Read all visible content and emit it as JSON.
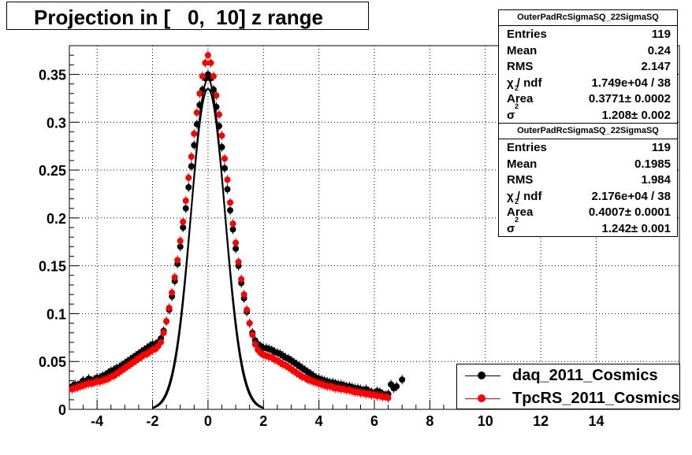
{
  "title": "Projection in [   0,  10] z range",
  "stats_boxes": [
    {
      "header": "OuterPadRcSigmaSQ_22SigmaSQ",
      "rows": [
        {
          "key": "Entries",
          "value": "119"
        },
        {
          "key": "Mean",
          "value": "0.24"
        },
        {
          "key": "RMS",
          "value": "2.147"
        },
        {
          "key": "χ  / ndf",
          "sub": "2",
          "value": "1.749e+04 / 38"
        },
        {
          "key": "Area",
          "value": "0.3771± 0.0002"
        },
        {
          "key": "σ",
          "sub": "2",
          "value": "1.208± 0.002"
        }
      ]
    },
    {
      "header": "OuterPadRcSigmaSQ_22SigmaSQ",
      "rows": [
        {
          "key": "Entries",
          "value": "119"
        },
        {
          "key": "Mean",
          "value": "0.1985"
        },
        {
          "key": "RMS",
          "value": "1.984"
        },
        {
          "key": "χ  / ndf",
          "sub": "2",
          "value": "2.176e+04 / 38"
        },
        {
          "key": "Area",
          "value": "0.4007± 0.0001"
        },
        {
          "key": "σ",
          "sub": "2",
          "value": "1.242± 0.001"
        }
      ]
    }
  ],
  "legend": [
    {
      "label": "daq_2011_Cosmics",
      "color": "#000000"
    },
    {
      "label": "TpcRS_2011_Cosmics",
      "color": "#ff0000"
    }
  ],
  "chart_data": {
    "type": "scatter",
    "xlim": [
      -5,
      17
    ],
    "ylim": [
      0,
      0.38
    ],
    "grid": true,
    "legend_position": "bottom-right",
    "x_ticks": [
      -4,
      -2,
      0,
      2,
      4,
      6,
      8,
      10,
      12,
      14
    ],
    "x_tick_labels": [
      "-4",
      "-2",
      "0",
      "2",
      "4",
      "6",
      "8",
      "10",
      "12",
      "14"
    ],
    "y_ticks": [
      0,
      0.05,
      0.1,
      0.15,
      0.2,
      0.25,
      0.3,
      0.35
    ],
    "y_tick_labels": [
      "0",
      "0.05",
      "0.1",
      "0.15",
      "0.2",
      "0.25",
      "0.3",
      "0.35"
    ],
    "series": [
      {
        "name": "daq_2011_Cosmics",
        "color": "#000000",
        "points": [
          [
            -4.9,
            0.024
          ],
          [
            -4.8,
            0.026
          ],
          [
            -4.7,
            0.025
          ],
          [
            -4.6,
            0.027
          ],
          [
            -4.5,
            0.03
          ],
          [
            -4.4,
            0.029
          ],
          [
            -4.3,
            0.032
          ],
          [
            -4.2,
            0.03
          ],
          [
            -4.1,
            0.031
          ],
          [
            -4.0,
            0.033
          ],
          [
            -3.9,
            0.033
          ],
          [
            -3.8,
            0.035
          ],
          [
            -3.7,
            0.036
          ],
          [
            -3.6,
            0.038
          ],
          [
            -3.5,
            0.04
          ],
          [
            -3.4,
            0.041
          ],
          [
            -3.3,
            0.043
          ],
          [
            -3.2,
            0.044
          ],
          [
            -3.1,
            0.046
          ],
          [
            -3.0,
            0.048
          ],
          [
            -2.9,
            0.05
          ],
          [
            -2.8,
            0.052
          ],
          [
            -2.7,
            0.054
          ],
          [
            -2.6,
            0.056
          ],
          [
            -2.5,
            0.058
          ],
          [
            -2.4,
            0.06
          ],
          [
            -2.3,
            0.062
          ],
          [
            -2.2,
            0.064
          ],
          [
            -2.1,
            0.066
          ],
          [
            -2.0,
            0.068
          ],
          [
            -1.9,
            0.068
          ],
          [
            -1.8,
            0.07
          ],
          [
            -1.7,
            0.074
          ],
          [
            -1.6,
            0.082
          ],
          [
            -1.5,
            0.092
          ],
          [
            -1.4,
            0.104
          ],
          [
            -1.3,
            0.118
          ],
          [
            -1.2,
            0.134
          ],
          [
            -1.1,
            0.152
          ],
          [
            -1.0,
            0.17
          ],
          [
            -0.9,
            0.19
          ],
          [
            -0.8,
            0.21
          ],
          [
            -0.7,
            0.232
          ],
          [
            -0.6,
            0.254
          ],
          [
            -0.5,
            0.276
          ],
          [
            -0.4,
            0.298
          ],
          [
            -0.3,
            0.318
          ],
          [
            -0.2,
            0.334
          ],
          [
            -0.1,
            0.346
          ],
          [
            0.0,
            0.35
          ],
          [
            0.1,
            0.346
          ],
          [
            0.2,
            0.334
          ],
          [
            0.3,
            0.316
          ],
          [
            0.4,
            0.296
          ],
          [
            0.5,
            0.274
          ],
          [
            0.6,
            0.252
          ],
          [
            0.7,
            0.23
          ],
          [
            0.8,
            0.208
          ],
          [
            0.9,
            0.188
          ],
          [
            1.0,
            0.168
          ],
          [
            1.1,
            0.15
          ],
          [
            1.2,
            0.132
          ],
          [
            1.3,
            0.116
          ],
          [
            1.4,
            0.102
          ],
          [
            1.5,
            0.09
          ],
          [
            1.6,
            0.08
          ],
          [
            1.7,
            0.072
          ],
          [
            1.8,
            0.068
          ],
          [
            1.9,
            0.066
          ],
          [
            2.0,
            0.064
          ],
          [
            2.1,
            0.064
          ],
          [
            2.2,
            0.063
          ],
          [
            2.3,
            0.062
          ],
          [
            2.4,
            0.06
          ],
          [
            2.5,
            0.059
          ],
          [
            2.6,
            0.058
          ],
          [
            2.7,
            0.056
          ],
          [
            2.8,
            0.054
          ],
          [
            2.9,
            0.053
          ],
          [
            3.0,
            0.051
          ],
          [
            3.1,
            0.049
          ],
          [
            3.2,
            0.047
          ],
          [
            3.3,
            0.045
          ],
          [
            3.4,
            0.043
          ],
          [
            3.5,
            0.041
          ],
          [
            3.6,
            0.039
          ],
          [
            3.7,
            0.037
          ],
          [
            3.8,
            0.035
          ],
          [
            3.9,
            0.033
          ],
          [
            4.0,
            0.032
          ],
          [
            4.1,
            0.031
          ],
          [
            4.2,
            0.03
          ],
          [
            4.3,
            0.029
          ],
          [
            4.4,
            0.028
          ],
          [
            4.5,
            0.028
          ],
          [
            4.6,
            0.027
          ],
          [
            4.7,
            0.026
          ],
          [
            4.8,
            0.026
          ],
          [
            4.9,
            0.025
          ],
          [
            5.0,
            0.024
          ],
          [
            5.1,
            0.024
          ],
          [
            5.2,
            0.023
          ],
          [
            5.3,
            0.022
          ],
          [
            5.4,
            0.022
          ],
          [
            5.5,
            0.021
          ],
          [
            5.6,
            0.02
          ],
          [
            5.7,
            0.021
          ],
          [
            5.8,
            0.019
          ],
          [
            5.9,
            0.018
          ],
          [
            6.0,
            0.017
          ],
          [
            6.1,
            0.019
          ],
          [
            6.2,
            0.018
          ],
          [
            6.3,
            0.016
          ],
          [
            6.4,
            0.015
          ],
          [
            6.5,
            0.016
          ],
          [
            6.6,
            0.026
          ],
          [
            6.7,
            0.022
          ],
          [
            6.8,
            0.024
          ],
          [
            7.0,
            0.031
          ]
        ],
        "fit": {
          "amplitude": 0.335,
          "mean": 0.0,
          "sigma": 0.62,
          "range": [
            -2.0,
            2.0
          ]
        }
      },
      {
        "name": "TpcRS_2011_Cosmics",
        "color": "#ff0000",
        "points": [
          [
            -4.9,
            0.021
          ],
          [
            -4.8,
            0.022
          ],
          [
            -4.7,
            0.023
          ],
          [
            -4.6,
            0.024
          ],
          [
            -4.5,
            0.025
          ],
          [
            -4.4,
            0.026
          ],
          [
            -4.3,
            0.027
          ],
          [
            -4.2,
            0.027
          ],
          [
            -4.1,
            0.028
          ],
          [
            -4.0,
            0.029
          ],
          [
            -3.9,
            0.029
          ],
          [
            -3.8,
            0.03
          ],
          [
            -3.7,
            0.031
          ],
          [
            -3.6,
            0.032
          ],
          [
            -3.5,
            0.034
          ],
          [
            -3.4,
            0.035
          ],
          [
            -3.3,
            0.037
          ],
          [
            -3.2,
            0.039
          ],
          [
            -3.1,
            0.041
          ],
          [
            -3.0,
            0.043
          ],
          [
            -2.9,
            0.045
          ],
          [
            -2.8,
            0.047
          ],
          [
            -2.7,
            0.049
          ],
          [
            -2.6,
            0.051
          ],
          [
            -2.5,
            0.053
          ],
          [
            -2.4,
            0.055
          ],
          [
            -2.3,
            0.057
          ],
          [
            -2.2,
            0.058
          ],
          [
            -2.1,
            0.06
          ],
          [
            -2.0,
            0.062
          ],
          [
            -1.9,
            0.063
          ],
          [
            -1.8,
            0.066
          ],
          [
            -1.7,
            0.07
          ],
          [
            -1.6,
            0.08
          ],
          [
            -1.5,
            0.092
          ],
          [
            -1.4,
            0.106
          ],
          [
            -1.3,
            0.122
          ],
          [
            -1.2,
            0.138
          ],
          [
            -1.1,
            0.156
          ],
          [
            -1.0,
            0.176
          ],
          [
            -0.9,
            0.196
          ],
          [
            -0.8,
            0.218
          ],
          [
            -0.7,
            0.242
          ],
          [
            -0.6,
            0.264
          ],
          [
            -0.5,
            0.288
          ],
          [
            -0.4,
            0.31
          ],
          [
            -0.3,
            0.33
          ],
          [
            -0.2,
            0.348
          ],
          [
            -0.1,
            0.362
          ],
          [
            0.0,
            0.37
          ],
          [
            0.1,
            0.362
          ],
          [
            0.2,
            0.348
          ],
          [
            0.3,
            0.328
          ],
          [
            0.4,
            0.308
          ],
          [
            0.5,
            0.286
          ],
          [
            0.6,
            0.262
          ],
          [
            0.7,
            0.24
          ],
          [
            0.8,
            0.216
          ],
          [
            0.9,
            0.194
          ],
          [
            1.0,
            0.174
          ],
          [
            1.1,
            0.154
          ],
          [
            1.2,
            0.136
          ],
          [
            1.3,
            0.12
          ],
          [
            1.4,
            0.104
          ],
          [
            1.5,
            0.09
          ],
          [
            1.6,
            0.078
          ],
          [
            1.7,
            0.068
          ],
          [
            1.8,
            0.062
          ],
          [
            1.9,
            0.059
          ],
          [
            2.0,
            0.057
          ],
          [
            2.1,
            0.056
          ],
          [
            2.2,
            0.055
          ],
          [
            2.3,
            0.054
          ],
          [
            2.4,
            0.052
          ],
          [
            2.5,
            0.051
          ],
          [
            2.6,
            0.049
          ],
          [
            2.7,
            0.047
          ],
          [
            2.8,
            0.046
          ],
          [
            2.9,
            0.044
          ],
          [
            3.0,
            0.042
          ],
          [
            3.1,
            0.04
          ],
          [
            3.2,
            0.038
          ],
          [
            3.3,
            0.036
          ],
          [
            3.4,
            0.034
          ],
          [
            3.5,
            0.033
          ],
          [
            3.6,
            0.031
          ],
          [
            3.7,
            0.03
          ],
          [
            3.8,
            0.029
          ],
          [
            3.9,
            0.028
          ],
          [
            4.0,
            0.027
          ],
          [
            4.1,
            0.026
          ],
          [
            4.2,
            0.025
          ],
          [
            4.3,
            0.024
          ],
          [
            4.4,
            0.024
          ],
          [
            4.5,
            0.023
          ],
          [
            4.6,
            0.022
          ],
          [
            4.7,
            0.022
          ],
          [
            4.8,
            0.021
          ],
          [
            4.9,
            0.021
          ],
          [
            5.0,
            0.02
          ],
          [
            5.1,
            0.02
          ],
          [
            5.2,
            0.019
          ],
          [
            5.3,
            0.018
          ],
          [
            5.4,
            0.018
          ],
          [
            5.5,
            0.017
          ],
          [
            5.6,
            0.017
          ],
          [
            5.7,
            0.016
          ],
          [
            5.8,
            0.016
          ],
          [
            5.9,
            0.015
          ],
          [
            6.0,
            0.015
          ],
          [
            6.1,
            0.014
          ],
          [
            6.2,
            0.014
          ],
          [
            6.3,
            0.013
          ],
          [
            6.4,
            0.013
          ],
          [
            6.5,
            0.012
          ]
        ],
        "fit": {
          "amplitude": 0.345,
          "mean": 0.0,
          "sigma": 0.6,
          "range": [
            -2.0,
            2.0
          ]
        }
      }
    ]
  }
}
